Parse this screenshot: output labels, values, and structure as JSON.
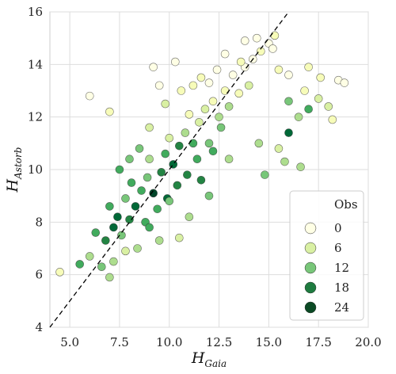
{
  "chart_data": {
    "type": "scatter",
    "title": "",
    "xlabel": {
      "base": "H",
      "sub": "Gaia"
    },
    "ylabel": {
      "base": "H",
      "sub": "Astorb"
    },
    "xlim": [
      4,
      20
    ],
    "ylim": [
      4,
      16
    ],
    "xticks": [
      5.0,
      7.5,
      10.0,
      12.5,
      15.0,
      17.5,
      20.0
    ],
    "xtick_labels": [
      "5.0",
      "7.5",
      "10.0",
      "12.5",
      "15.0",
      "17.5",
      "20.0"
    ],
    "yticks": [
      4,
      6,
      8,
      10,
      12,
      14,
      16
    ],
    "ytick_labels": [
      "4",
      "6",
      "8",
      "10",
      "12",
      "14",
      "16"
    ],
    "grid": true,
    "reference_line": {
      "style": "dashed",
      "color": "#000000",
      "from": [
        4,
        4
      ],
      "to": [
        16,
        16
      ]
    },
    "color_variable": "Obs",
    "colormap": [
      "#ffffe5",
      "#f7fcb9",
      "#d9f0a3",
      "#addd8e",
      "#78c679",
      "#41ab5d",
      "#238443",
      "#006837",
      "#004529"
    ],
    "legend": {
      "title": "Obs",
      "position": "lower-right",
      "entries": [
        {
          "label": "0",
          "color": "#ffffe5"
        },
        {
          "label": "6",
          "color": "#d9f0a3"
        },
        {
          "label": "12",
          "color": "#78c679"
        },
        {
          "label": "18",
          "color": "#1e7b3f"
        },
        {
          "label": "24",
          "color": "#0b4a24"
        }
      ]
    },
    "series": [
      {
        "points": [
          [
            5.5,
            6.4,
            16
          ],
          [
            4.5,
            6.1,
            3
          ],
          [
            6.0,
            6.7,
            10
          ],
          [
            6.6,
            6.3,
            12
          ],
          [
            7.0,
            5.9,
            9
          ],
          [
            6.3,
            7.6,
            14
          ],
          [
            6.8,
            7.3,
            17
          ],
          [
            7.2,
            7.8,
            20
          ],
          [
            7.6,
            7.5,
            13
          ],
          [
            7.0,
            8.6,
            15
          ],
          [
            7.4,
            8.2,
            22
          ],
          [
            8.0,
            8.1,
            19
          ],
          [
            7.8,
            8.9,
            11
          ],
          [
            8.3,
            8.6,
            21
          ],
          [
            8.6,
            9.2,
            16
          ],
          [
            8.1,
            9.5,
            14
          ],
          [
            8.9,
            9.7,
            12
          ],
          [
            9.2,
            9.1,
            23
          ],
          [
            9.6,
            9.9,
            18
          ],
          [
            9.0,
            10.4,
            8
          ],
          [
            9.8,
            10.6,
            15
          ],
          [
            10.2,
            10.2,
            20
          ],
          [
            10.5,
            10.9,
            17
          ],
          [
            10.0,
            11.2,
            6
          ],
          [
            10.8,
            11.4,
            9
          ],
          [
            11.2,
            11.0,
            14
          ],
          [
            11.5,
            11.8,
            7
          ],
          [
            11.0,
            12.1,
            4
          ],
          [
            11.8,
            12.3,
            5
          ],
          [
            12.2,
            12.6,
            3
          ],
          [
            12.5,
            12.0,
            8
          ],
          [
            12.8,
            13.0,
            2
          ],
          [
            12.0,
            13.3,
            1
          ],
          [
            13.2,
            13.6,
            0
          ],
          [
            13.5,
            12.9,
            4
          ],
          [
            13.8,
            13.9,
            1
          ],
          [
            14.2,
            14.2,
            0
          ],
          [
            14.6,
            14.5,
            2
          ],
          [
            15.0,
            14.8,
            1
          ],
          [
            15.3,
            15.1,
            3
          ],
          [
            14.0,
            13.2,
            6
          ],
          [
            13.0,
            12.4,
            9
          ],
          [
            12.6,
            11.6,
            12
          ],
          [
            12.0,
            11.0,
            13
          ],
          [
            11.4,
            10.4,
            15
          ],
          [
            10.9,
            9.8,
            18
          ],
          [
            10.4,
            9.4,
            19
          ],
          [
            9.9,
            8.9,
            21
          ],
          [
            9.4,
            8.5,
            16
          ],
          [
            8.8,
            8.0,
            14
          ],
          [
            13.0,
            10.4,
            10
          ],
          [
            12.0,
            9.0,
            11
          ],
          [
            11.0,
            8.2,
            9
          ],
          [
            10.5,
            7.4,
            7
          ],
          [
            9.5,
            7.3,
            10
          ],
          [
            15.8,
            10.3,
            8
          ],
          [
            16.6,
            10.1,
            9
          ],
          [
            15.5,
            10.8,
            7
          ],
          [
            14.5,
            11.0,
            10
          ],
          [
            14.8,
            9.8,
            12
          ],
          [
            16.0,
            11.4,
            20
          ],
          [
            16.5,
            12.0,
            9
          ],
          [
            17.0,
            12.3,
            14
          ],
          [
            17.5,
            12.7,
            6
          ],
          [
            16.0,
            12.6,
            13
          ],
          [
            16.0,
            13.6,
            1
          ],
          [
            17.0,
            13.9,
            2
          ],
          [
            18.5,
            13.4,
            0
          ],
          [
            18.8,
            13.3,
            1
          ],
          [
            17.6,
            13.5,
            2
          ],
          [
            18.0,
            12.4,
            5
          ],
          [
            18.2,
            11.9,
            4
          ],
          [
            16.8,
            13.0,
            3
          ],
          [
            15.5,
            13.8,
            2
          ],
          [
            15.2,
            14.6,
            0
          ],
          [
            6.0,
            12.8,
            1
          ],
          [
            7.0,
            12.2,
            2
          ],
          [
            9.5,
            13.2,
            1
          ],
          [
            9.2,
            13.9,
            0
          ],
          [
            10.3,
            14.1,
            1
          ],
          [
            12.8,
            14.4,
            0
          ],
          [
            13.8,
            14.9,
            0
          ],
          [
            14.4,
            15.0,
            1
          ],
          [
            11.6,
            13.5,
            2
          ],
          [
            12.4,
            13.8,
            1
          ],
          [
            7.5,
            10.0,
            14
          ],
          [
            8.0,
            10.4,
            13
          ],
          [
            8.5,
            10.8,
            11
          ],
          [
            9.0,
            11.6,
            7
          ],
          [
            9.8,
            12.5,
            5
          ],
          [
            10.6,
            13.0,
            3
          ],
          [
            11.2,
            13.2,
            4
          ],
          [
            13.6,
            14.1,
            2
          ],
          [
            12.2,
            10.7,
            16
          ],
          [
            11.6,
            9.6,
            17
          ],
          [
            10.0,
            8.8,
            12
          ],
          [
            9.0,
            7.8,
            14
          ],
          [
            8.4,
            7.0,
            9
          ],
          [
            7.8,
            6.9,
            7
          ],
          [
            7.2,
            6.5,
            10
          ]
        ]
      }
    ]
  }
}
